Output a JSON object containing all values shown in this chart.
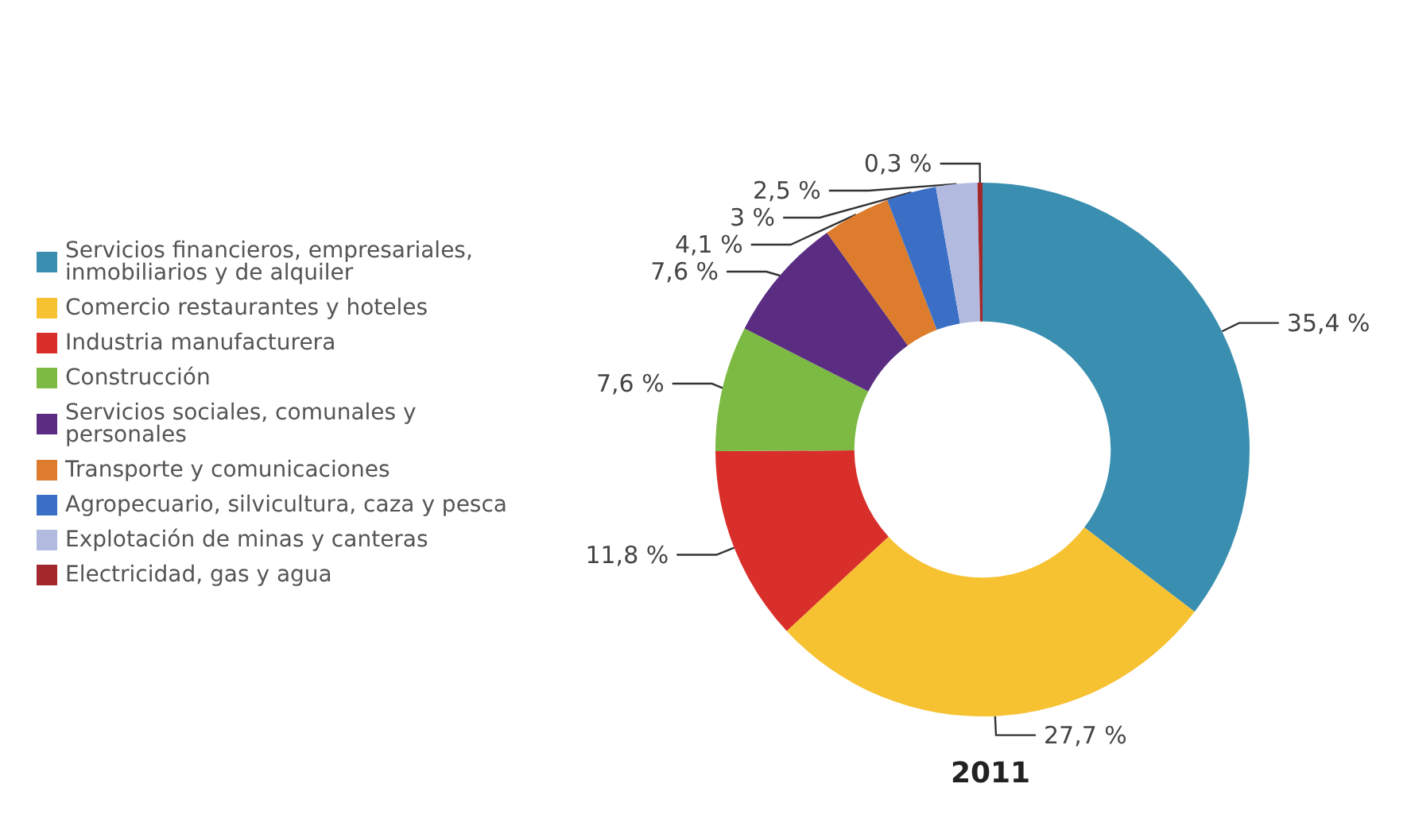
{
  "chart_data": {
    "type": "donut",
    "title": "2011",
    "categories": [
      "Servicios financieros, empresariales, inmobiliarios y de alquiler",
      "Comercio restaurantes y hoteles",
      "Industria manufacturera",
      "Construcción",
      "Servicios sociales, comunales y personales",
      "Transporte y comunicaciones",
      "Agropecuario, silvicultura, caza y pesca",
      "Explotación de minas y canteras",
      "Electricidad, gas y agua"
    ],
    "values": [
      35.4,
      27.7,
      11.8,
      7.6,
      7.6,
      4.1,
      3,
      2.5,
      0.3
    ],
    "value_labels": [
      "35,4 %",
      "27,7 %",
      "11,8 %",
      "7,6 %",
      "7,6 %",
      "4,1 %",
      "3 %",
      "2,5 %",
      "0,3 %"
    ],
    "colors": [
      "#3a8fb0",
      "#f6c232",
      "#d92f2a",
      "#7cba44",
      "#5a2d82",
      "#dc7c2c",
      "#3b6fc6",
      "#b3badf",
      "#a3282b"
    ],
    "legend": "left"
  }
}
